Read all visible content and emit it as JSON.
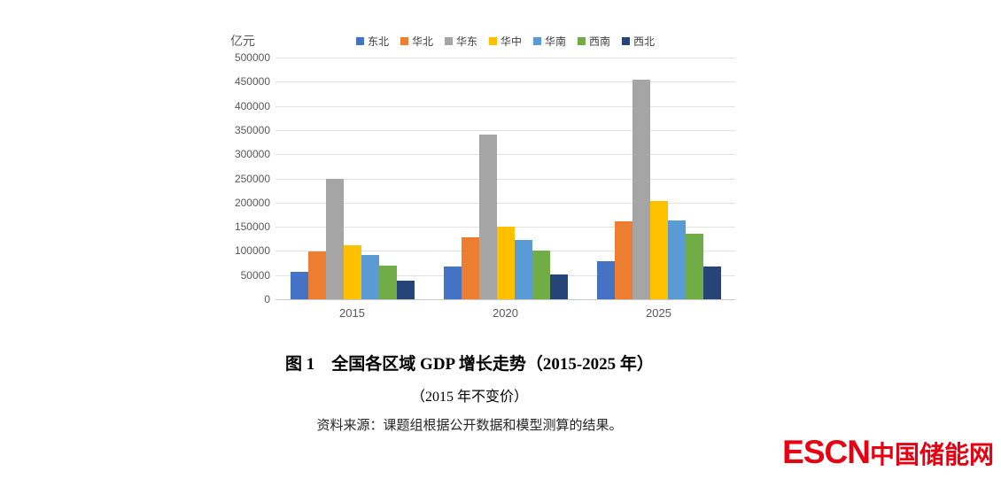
{
  "chart_data": {
    "type": "bar",
    "title": "全国各区域GDP增长走势（2015-2025年）",
    "unit_label": "亿元",
    "categories": [
      "2015",
      "2020",
      "2025"
    ],
    "series": [
      {
        "name": "东北",
        "color": "#4472C4",
        "values": [
          56000,
          67000,
          79000
        ]
      },
      {
        "name": "华北",
        "color": "#ED7D31",
        "values": [
          99000,
          128000,
          162000
        ]
      },
      {
        "name": "华东",
        "color": "#A5A5A5",
        "values": [
          249000,
          340000,
          455000
        ]
      },
      {
        "name": "华中",
        "color": "#FFC000",
        "values": [
          111000,
          151000,
          203000
        ]
      },
      {
        "name": "华南",
        "color": "#5B9BD5",
        "values": [
          92000,
          123000,
          163000
        ]
      },
      {
        "name": "西南",
        "color": "#70AD47",
        "values": [
          70000,
          100000,
          135000
        ]
      },
      {
        "name": "西北",
        "color": "#264478",
        "values": [
          39000,
          52000,
          67000
        ]
      }
    ],
    "y_axis": {
      "min": 0,
      "max": 500000,
      "step": 50000
    },
    "xlabel": "",
    "ylabel": "亿元",
    "grid": true,
    "legend_position": "top"
  },
  "caption": {
    "title": "图 1　全国各区域 GDP 增长走势（2015-2025 年）",
    "subtitle": "（2015 年不变价）",
    "source": "资料来源：课题组根据公开数据和模型测算的结果。"
  },
  "logo": {
    "latin": "ESCN",
    "cjk": "中国储能网",
    "color": "#E60012"
  }
}
